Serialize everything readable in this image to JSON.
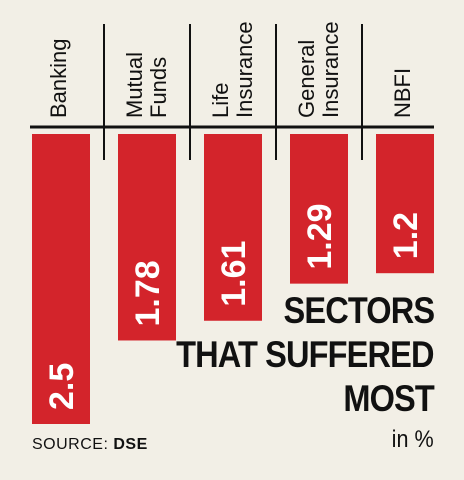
{
  "chart_data": {
    "type": "bar",
    "categories": [
      [
        "Banking"
      ],
      [
        "Mutual",
        "Funds"
      ],
      [
        "Life",
        "Insurance"
      ],
      [
        "General",
        "Insurance"
      ],
      [
        "NBFI"
      ]
    ],
    "values": [
      2.5,
      1.78,
      1.61,
      1.29,
      1.2
    ],
    "value_labels": [
      "2.5",
      "1.78",
      "1.61",
      "1.29",
      "1.2"
    ],
    "title": [
      "SECTORS",
      "THAT SUFFERED",
      "MOST"
    ],
    "unit": "in %",
    "bar_color": "#d3242b",
    "axis_color": "#111111",
    "grid": false,
    "legend": false
  },
  "source": {
    "label": "SOURCE:",
    "value": "DSE"
  }
}
